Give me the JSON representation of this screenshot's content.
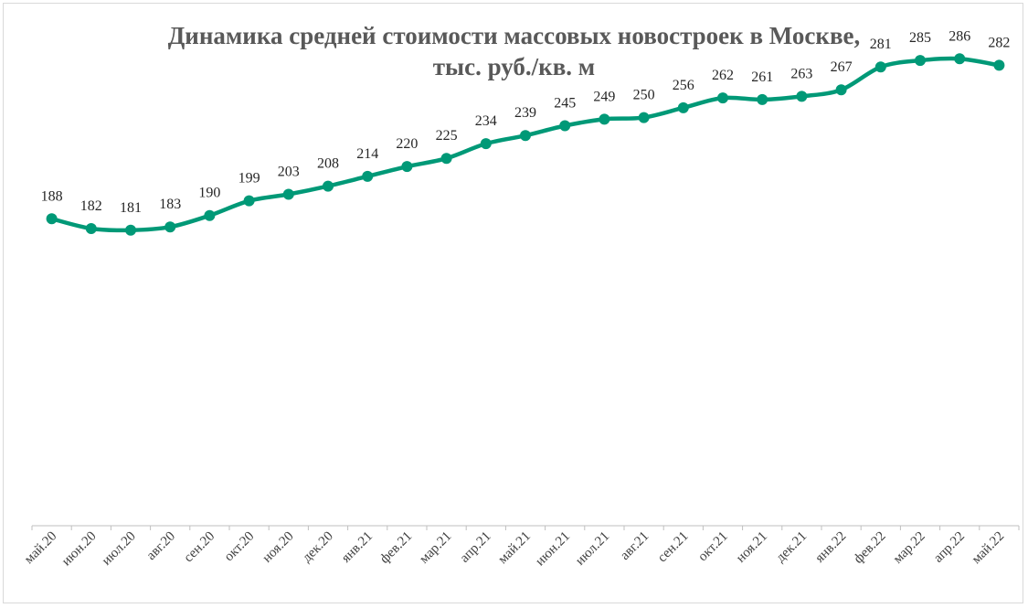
{
  "chart_data": {
    "type": "line",
    "title": "Динамика средней стоимости массовых новостроек в Москве,",
    "subtitle": "тыс. руб./кв. м",
    "categories": [
      "май.20",
      "июн.20",
      "июл.20",
      "авг.20",
      "сен.20",
      "окт.20",
      "ноя.20",
      "дек.20",
      "янв.21",
      "фев.21",
      "мар.21",
      "апр.21",
      "май.21",
      "июн.21",
      "июл.21",
      "авг.21",
      "сен.21",
      "окт.21",
      "ноя.21",
      "дек.21",
      "янв.22",
      "фев.22",
      "мар.22",
      "апр.22",
      "май.22"
    ],
    "series": [
      {
        "values": [
          188,
          182,
          181,
          183,
          190,
          199,
          203,
          208,
          214,
          220,
          225,
          234,
          239,
          245,
          249,
          250,
          256,
          262,
          261,
          263,
          267,
          281,
          285,
          286,
          282
        ],
        "color": "#009977"
      }
    ],
    "ylim": [
      0,
      322
    ],
    "grid": false,
    "legend": "none"
  }
}
